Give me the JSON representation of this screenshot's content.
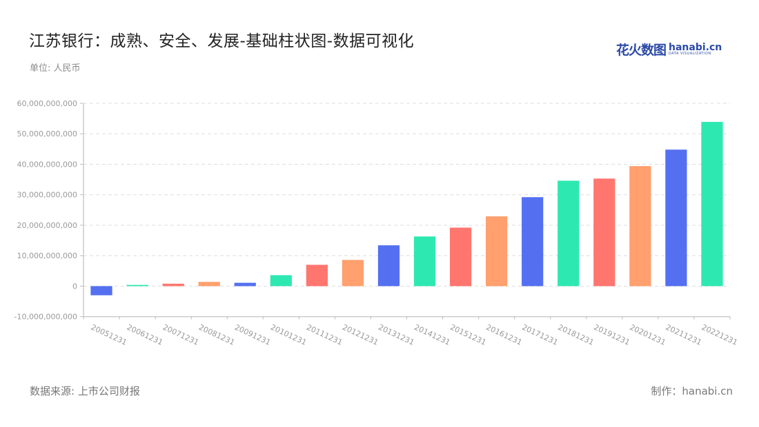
{
  "header": {
    "title": "江苏银行：成熟、安全、发展-基础柱状图-数据可视化",
    "unit": "单位: 人民币"
  },
  "logo": {
    "cn": "花火数图",
    "en": "hanabi.cn",
    "en_sub": "DATA VISUALIZATION"
  },
  "footer": {
    "source": "数据来源: 上市公司财报",
    "credit": "制作：hanabi.cn"
  },
  "colors": [
    "#5470f0",
    "#2ee8b2",
    "#ff766f",
    "#ffa06e"
  ],
  "chart_data": {
    "type": "bar",
    "title": "江苏银行：成熟、安全、发展-基础柱状图-数据可视化",
    "xlabel": "",
    "ylabel": "单位: 人民币",
    "ylim": [
      -10000000000,
      60000000000
    ],
    "yticks": [
      "-10,000,000,000",
      "0",
      "10,000,000,000",
      "20,000,000,000",
      "30,000,000,000",
      "40,000,000,000",
      "50,000,000,000",
      "60,000,000,000"
    ],
    "grid": true,
    "legend": "none",
    "categories": [
      "20051231",
      "20061231",
      "20071231",
      "20081231",
      "20091231",
      "20101231",
      "20111231",
      "20121231",
      "20131231",
      "20141231",
      "20151231",
      "20161231",
      "20171231",
      "20181231",
      "20191231",
      "20201231",
      "20211231",
      "20221231"
    ],
    "values": [
      -3000000000,
      400000000,
      800000000,
      1400000000,
      1100000000,
      3600000000,
      7000000000,
      8600000000,
      13400000000,
      16300000000,
      19200000000,
      22900000000,
      29200000000,
      34600000000,
      35300000000,
      39400000000,
      44800000000,
      53900000000
    ],
    "bar_colors": [
      "#5470f0",
      "#2ee8b2",
      "#ff766f",
      "#ffa06e",
      "#5470f0",
      "#2ee8b2",
      "#ff766f",
      "#ffa06e",
      "#5470f0",
      "#2ee8b2",
      "#ff766f",
      "#ffa06e",
      "#5470f0",
      "#2ee8b2",
      "#ff766f",
      "#ffa06e",
      "#5470f0",
      "#2ee8b2"
    ]
  }
}
